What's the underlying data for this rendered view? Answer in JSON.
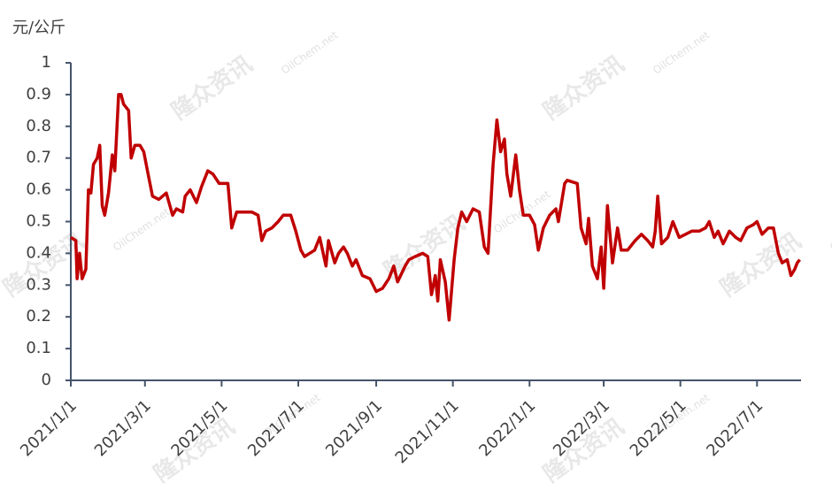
{
  "chart_data": {
    "type": "line",
    "y_label": "元/公斤",
    "watermark": [
      "隆众资讯",
      "OilChem.net"
    ],
    "xlim": [
      "2021/1/1",
      "2022/8/5"
    ],
    "xticks": [
      "2021/1/1",
      "2021/3/1",
      "2021/5/1",
      "2021/7/1",
      "2021/9/1",
      "2021/11/1",
      "2022/1/1",
      "2022/3/1",
      "2022/5/1",
      "2022/7/1"
    ],
    "ylim": [
      0,
      1
    ],
    "yticks": [
      0,
      0.1,
      0.2,
      0.3,
      0.4,
      0.5,
      0.6,
      0.7,
      0.8,
      0.9,
      1
    ],
    "x": [
      "2021/1/1",
      "2021/1/5",
      "2021/1/6",
      "2021/1/8",
      "2021/1/10",
      "2021/1/13",
      "2021/1/15",
      "2021/1/17",
      "2021/1/19",
      "2021/1/22",
      "2021/1/24",
      "2021/1/26",
      "2021/1/28",
      "2021/1/31",
      "2021/2/3",
      "2021/2/5",
      "2021/2/8",
      "2021/2/10",
      "2021/2/12",
      "2021/2/16",
      "2021/2/18",
      "2021/2/21",
      "2021/2/25",
      "2021/2/28",
      "2021/3/4",
      "2021/3/7",
      "2021/3/12",
      "2021/3/18",
      "2021/3/23",
      "2021/3/26",
      "2021/3/31",
      "2021/4/2",
      "2021/4/6",
      "2021/4/11",
      "2021/4/15",
      "2021/4/20",
      "2021/4/24",
      "2021/4/29",
      "2021/5/6",
      "2021/5/9",
      "2021/5/13",
      "2021/5/18",
      "2021/5/25",
      "2021/5/30",
      "2021/6/2",
      "2021/6/5",
      "2021/6/10",
      "2021/6/15",
      "2021/6/19",
      "2021/6/25",
      "2021/6/29",
      "2021/7/3",
      "2021/7/6",
      "2021/7/14",
      "2021/7/18",
      "2021/7/23",
      "2021/7/25",
      "2021/7/30",
      "2021/8/2",
      "2021/8/6",
      "2021/8/9",
      "2021/8/13",
      "2021/8/16",
      "2021/8/21",
      "2021/8/27",
      "2021/9/1",
      "2021/9/6",
      "2021/9/11",
      "2021/9/15",
      "2021/9/18",
      "2021/9/24",
      "2021/9/27",
      "2021/10/2",
      "2021/10/8",
      "2021/10/12",
      "2021/10/15",
      "2021/10/18",
      "2021/10/20",
      "2021/10/22",
      "2021/10/26",
      "2021/10/29",
      "2021/11/2",
      "2021/11/5",
      "2021/11/8",
      "2021/11/12",
      "2021/11/17",
      "2021/11/22",
      "2021/11/26",
      "2021/11/29",
      "2021/12/3",
      "2021/12/6",
      "2021/12/9",
      "2021/12/12",
      "2021/12/14",
      "2021/12/17",
      "2021/12/21",
      "2021/12/24",
      "2021/12/27",
      "2022/1/1",
      "2022/1/5",
      "2022/1/8",
      "2022/1/12",
      "2022/1/17",
      "2022/1/22",
      "2022/1/24",
      "2022/1/29",
      "2022/1/31",
      "2022/2/8",
      "2022/2/11",
      "2022/2/15",
      "2022/2/17",
      "2022/2/20",
      "2022/2/24",
      "2022/2/27",
      "2022/3/1",
      "2022/3/4",
      "2022/3/8",
      "2022/3/12",
      "2022/3/15",
      "2022/3/20",
      "2022/3/26",
      "2022/3/31",
      "2022/4/5",
      "2022/4/9",
      "2022/4/11",
      "2022/4/13",
      "2022/4/16",
      "2022/4/21",
      "2022/4/25",
      "2022/4/30",
      "2022/5/5",
      "2022/5/10",
      "2022/5/16",
      "2022/5/21",
      "2022/5/24",
      "2022/5/28",
      "2022/5/31",
      "2022/6/4",
      "2022/6/9",
      "2022/6/14",
      "2022/6/18",
      "2022/6/23",
      "2022/6/28",
      "2022/7/1",
      "2022/7/5",
      "2022/7/10",
      "2022/7/14",
      "2022/7/18",
      "2022/7/21",
      "2022/7/25",
      "2022/7/28",
      "2022/7/31",
      "2022/8/2",
      "2022/8/4"
    ],
    "series": [
      {
        "color": "#c00000",
        "values": [
          0.45,
          0.44,
          0.32,
          0.4,
          0.32,
          0.35,
          0.6,
          0.59,
          0.68,
          0.7,
          0.74,
          0.55,
          0.52,
          0.59,
          0.71,
          0.66,
          0.9,
          0.9,
          0.87,
          0.85,
          0.7,
          0.74,
          0.74,
          0.72,
          0.64,
          0.58,
          0.57,
          0.59,
          0.52,
          0.54,
          0.53,
          0.58,
          0.6,
          0.56,
          0.61,
          0.66,
          0.65,
          0.62,
          0.62,
          0.48,
          0.53,
          0.53,
          0.53,
          0.52,
          0.44,
          0.47,
          0.48,
          0.5,
          0.52,
          0.52,
          0.47,
          0.41,
          0.39,
          0.41,
          0.45,
          0.36,
          0.44,
          0.37,
          0.4,
          0.42,
          0.4,
          0.36,
          0.38,
          0.33,
          0.32,
          0.28,
          0.29,
          0.32,
          0.36,
          0.31,
          0.36,
          0.38,
          0.39,
          0.4,
          0.39,
          0.27,
          0.33,
          0.25,
          0.38,
          0.31,
          0.19,
          0.38,
          0.48,
          0.53,
          0.5,
          0.54,
          0.53,
          0.42,
          0.4,
          0.68,
          0.82,
          0.72,
          0.76,
          0.65,
          0.58,
          0.71,
          0.6,
          0.52,
          0.52,
          0.49,
          0.41,
          0.48,
          0.52,
          0.54,
          0.5,
          0.62,
          0.63,
          0.62,
          0.48,
          0.43,
          0.51,
          0.36,
          0.32,
          0.42,
          0.29,
          0.55,
          0.37,
          0.48,
          0.41,
          0.41,
          0.44,
          0.46,
          0.44,
          0.42,
          0.47,
          0.58,
          0.43,
          0.45,
          0.5,
          0.45,
          0.46,
          0.47,
          0.47,
          0.48,
          0.5,
          0.45,
          0.47,
          0.43,
          0.47,
          0.45,
          0.44,
          0.48,
          0.49,
          0.5,
          0.46,
          0.48,
          0.48,
          0.4,
          0.37,
          0.38,
          0.33,
          0.35,
          0.37,
          0.38
        ]
      }
    ]
  }
}
